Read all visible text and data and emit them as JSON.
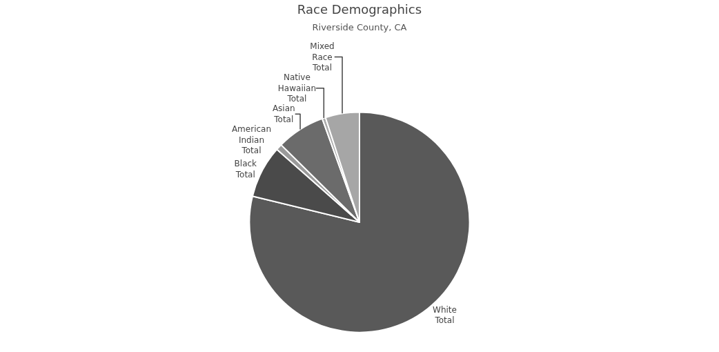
{
  "chart_data": {
    "type": "pie",
    "title": "Race Demographics",
    "subtitle": "Riverside County, CA",
    "categories": [
      "White Total",
      "Black Total",
      "American Indian Total",
      "Asian Total",
      "Native Hawaiian Total",
      "Mixed Race Total"
    ],
    "values": [
      78.8,
      7.7,
      0.9,
      7.1,
      0.5,
      5.0
    ],
    "colors": [
      "#595959",
      "#4a4a4a",
      "#9a9a9a",
      "#6b6b6b",
      "#ababab",
      "#a6a6a6"
    ],
    "legend": false
  }
}
